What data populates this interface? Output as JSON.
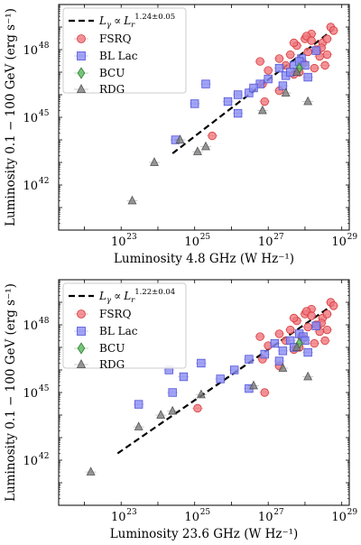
{
  "colors": {
    "fsrq_fill": "#f0787f",
    "fsrq_edge": "#d63a3a",
    "bllac_fill": "#8a8cf2",
    "bllac_edge": "#5254d8",
    "bcu_fill": "#57b85b",
    "bcu_edge": "#2e7d32",
    "rdg_fill": "#7d7d7d",
    "rdg_edge": "#555555",
    "fit_line": "#000000"
  },
  "chart_data": [
    {
      "type": "scatter",
      "xlabel": "Luminosity 4.8 GHz (W Hz⁻¹)",
      "ylabel": "Luminosity 0.1 − 100 GeV (erg s⁻¹)",
      "x_scale": "log",
      "y_scale": "log",
      "xlim": [
        2e+21,
        1.6e+29
      ],
      "ylim": [
        1e+40,
        1e+50
      ],
      "x_ticks": [
        {
          "base": "10",
          "exp": "23",
          "value": 1e+23
        },
        {
          "base": "10",
          "exp": "25",
          "value": 1e+25
        },
        {
          "base": "10",
          "exp": "27",
          "value": 1e+27
        },
        {
          "base": "10",
          "exp": "29",
          "value": 1e+29
        }
      ],
      "y_ticks": [
        {
          "base": "10",
          "exp": "42",
          "value": 1e+42
        },
        {
          "base": "10",
          "exp": "45",
          "value": 1e+45
        },
        {
          "base": "10",
          "exp": "48",
          "value": 1e+48
        }
      ],
      "legend": {
        "location": "upper-left",
        "fit_label": {
          "lhs": "L",
          "lhs_sub": "γ",
          "rel": "∝",
          "rhs": "L",
          "rhs_sub": "r",
          "exponent": "1.24±0.05"
        },
        "entries": [
          "FSRQ",
          "BL Lac",
          "BCU",
          "RDG"
        ]
      },
      "fit": {
        "slope": 1.24,
        "x": [
          2.5e+24,
          6e+28
        ],
        "y": [
          2.5e+43,
          8e+48
        ]
      },
      "series": [
        {
          "name": "FSRQ",
          "marker": "circle",
          "x": [
            1e+28,
            1.5e+28,
            2e+28,
            3e+28,
            5e+28,
            8e+27,
            6e+27,
            4e+27,
            2e+27,
            1.2e+28,
            2.5e+28,
            4e+28,
            7e+27,
            1e+27,
            3e+27,
            5e+27,
            9e+27,
            1.8e+28,
            2.2e+28,
            6e+28,
            3.5e+28,
            1.1e+28,
            7e+26,
            4e+28,
            2e+27,
            2.8e+28,
            5e+27,
            1.5e+28,
            6e+26,
            8e+26,
            3e+25
          ],
          "y": [
            3e+48,
            5e+48,
            1e+48,
            2e+48,
            1e+49,
            3e+47,
            1.5e+48,
            6e+47,
            4e+47,
            8e+47,
            5e+47,
            3e+48,
            1e+47,
            1.2e+47,
            2e+47,
            8e+46,
            2.5e+47,
            1.5e+47,
            9e+47,
            7e+48,
            2e+47,
            4e+48,
            3e+46,
            6e+47,
            1.5e+46,
            1.2e+48,
            2e+48,
            2.5e+48,
            3e+47,
            5e+45,
            1.5e+44
          ]
        },
        {
          "name": "BL Lac",
          "marker": "square",
          "x": [
            3e+24,
            1e+25,
            2e+25,
            8e+25,
            1.5e+26,
            3e+26,
            6e+26,
            1e+27,
            2e+27,
            3e+27,
            5e+27,
            8e+27,
            1.2e+28,
            2e+28,
            4e+27,
            7e+27,
            1.5e+26,
            1e+28,
            2.5e+27,
            4e+26
          ],
          "y": [
            1e+44,
            4e+45,
            3e+46,
            5e+45,
            1e+46,
            1.2e+46,
            3e+46,
            5e+46,
            1.5e+47,
            7e+46,
            2e+47,
            4e+47,
            6e+46,
            9e+47,
            1e+47,
            3e+47,
            1.5e+45,
            2e+47,
            2.5e+46,
            2e+46
          ]
        },
        {
          "name": "BCU",
          "marker": "diamond",
          "x": [
            7e+27
          ],
          "y": [
            1.5e+47
          ]
        },
        {
          "name": "RDG",
          "marker": "triangle",
          "x": [
            2e+23,
            8e+23,
            4e+24,
            1.2e+25,
            7e+26,
            3e+27,
            1.2e+28,
            6e+27,
            2e+25
          ],
          "y": [
            2e+41,
            1e+43,
            1e+44,
            3e+43,
            2e+45,
            1.2e+46,
            5e+45,
            1e+47,
            5e+43
          ]
        }
      ]
    },
    {
      "type": "scatter",
      "xlabel": "Luminosity 23.6 GHz (W Hz⁻¹)",
      "ylabel": "Luminosity 0.1 − 100 GeV (erg s⁻¹)",
      "x_scale": "log",
      "y_scale": "log",
      "xlim": [
        2e+21,
        1.6e+29
      ],
      "ylim": [
        1e+40,
        1e+50
      ],
      "x_ticks": [
        {
          "base": "10",
          "exp": "23",
          "value": 1e+23
        },
        {
          "base": "10",
          "exp": "25",
          "value": 1e+25
        },
        {
          "base": "10",
          "exp": "27",
          "value": 1e+27
        },
        {
          "base": "10",
          "exp": "29",
          "value": 1e+29
        }
      ],
      "y_ticks": [
        {
          "base": "10",
          "exp": "42",
          "value": 1e+42
        },
        {
          "base": "10",
          "exp": "45",
          "value": 1e+45
        },
        {
          "base": "10",
          "exp": "48",
          "value": 1e+48
        }
      ],
      "legend": {
        "location": "upper-left",
        "fit_label": {
          "lhs": "L",
          "lhs_sub": "γ",
          "rel": "∝",
          "rhs": "L",
          "rhs_sub": "r",
          "exponent": "1.22±0.04"
        },
        "entries": [
          "FSRQ",
          "BL Lac",
          "BCU",
          "RDG"
        ]
      },
      "fit": {
        "slope": 1.22,
        "x": [
          8e+22,
          6e+28
        ],
        "y": [
          2e+42,
          8e+48
        ]
      },
      "series": [
        {
          "name": "FSRQ",
          "marker": "circle",
          "x": [
            1e+28,
            1.5e+28,
            2e+28,
            3e+28,
            5e+28,
            8e+27,
            6e+27,
            4e+27,
            2e+27,
            1.2e+28,
            2.5e+28,
            4e+28,
            7e+27,
            1e+27,
            3e+27,
            5e+27,
            9e+27,
            1.8e+28,
            2.2e+28,
            6e+28,
            3.5e+28,
            1.1e+28,
            7e+26,
            4e+28,
            2e+27,
            2.8e+28,
            5e+27,
            1.5e+28,
            6e+26,
            8e+26,
            1.2e+25
          ],
          "y": [
            3e+48,
            5e+48,
            1e+48,
            2e+48,
            1e+49,
            3e+47,
            1.5e+48,
            6e+47,
            4e+47,
            8e+47,
            5e+47,
            3e+48,
            1e+47,
            1.2e+47,
            2e+47,
            8e+46,
            2.5e+47,
            1.5e+47,
            9e+47,
            7e+48,
            2e+47,
            4e+48,
            3e+46,
            6e+47,
            1.5e+46,
            1.2e+48,
            2e+48,
            2.5e+48,
            3e+47,
            1e+45,
            2e+44
          ]
        },
        {
          "name": "BL Lac",
          "marker": "square",
          "x": [
            3e+23,
            2e+24,
            5e+24,
            1.5e+25,
            5e+25,
            1.2e+26,
            3e+26,
            8e+26,
            1.5e+27,
            2.5e+27,
            4e+27,
            7e+27,
            1.2e+28,
            2e+28,
            5e+27,
            9e+27,
            3e+26,
            1e+28,
            2e+27,
            2.5e+24
          ],
          "y": [
            3e+44,
            1e+46,
            5e+45,
            2e+46,
            4e+45,
            1e+46,
            3e+46,
            5e+46,
            1.5e+47,
            7e+46,
            2e+47,
            4e+47,
            6e+46,
            9e+47,
            1e+47,
            3e+47,
            1.5e+45,
            2e+47,
            2.5e+46,
            1e+45
          ]
        },
        {
          "name": "BCU",
          "marker": "diamond",
          "x": [
            7e+27
          ],
          "y": [
            1.5e+47
          ]
        },
        {
          "name": "RDG",
          "marker": "triangle",
          "x": [
            1.5e+22,
            3e+23,
            1.2e+24,
            2.5e+24,
            4e+26,
            2.5e+27,
            1.2e+28,
            6e+27,
            1.5e+25
          ],
          "y": [
            3e+41,
            3e+43,
            1e+44,
            1.5e+44,
            2e+45,
            1.2e+46,
            5e+45,
            1e+47,
            8e+44
          ]
        }
      ]
    }
  ]
}
